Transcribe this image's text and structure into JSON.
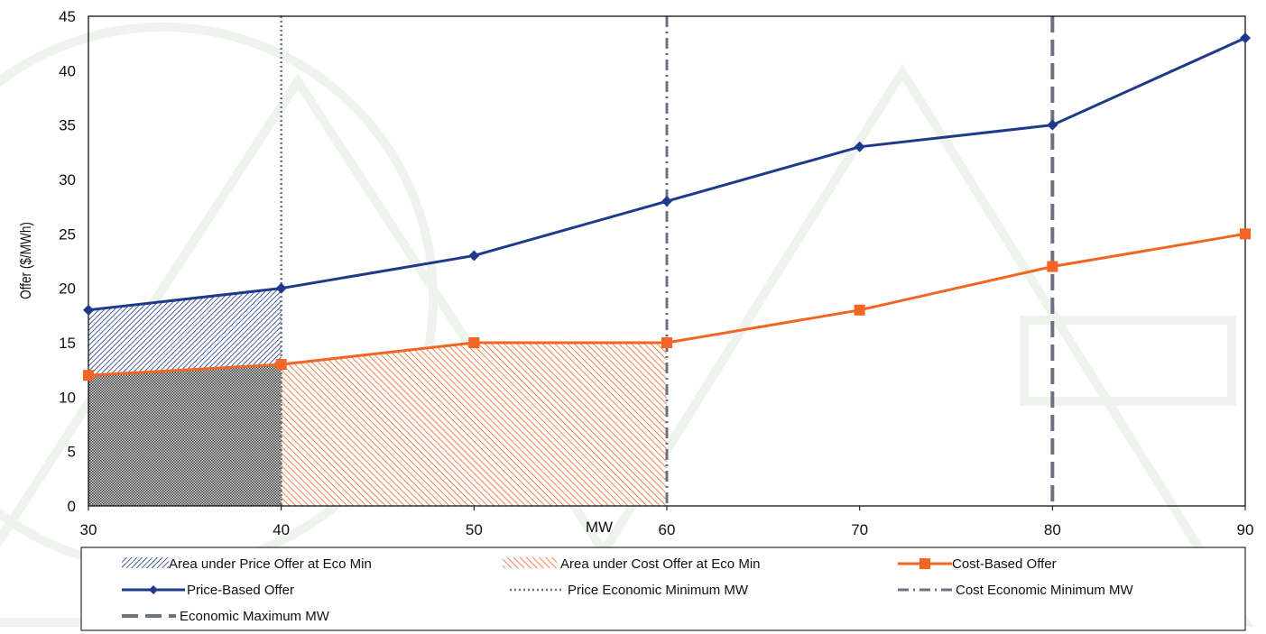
{
  "chart_data": {
    "type": "line",
    "title": "",
    "xlabel": "MW",
    "ylabel": "Offer ($/MWh)",
    "xlim": [
      30,
      90
    ],
    "ylim": [
      0,
      45
    ],
    "xticks": [
      30,
      40,
      50,
      60,
      70,
      80,
      90
    ],
    "yticks": [
      0,
      5,
      10,
      15,
      20,
      25,
      30,
      35,
      40,
      45
    ],
    "grid": false,
    "legend_position": "bottom",
    "series": [
      {
        "name": "Price-Based Offer",
        "type": "line",
        "marker": "diamond",
        "color": "#1f3a8a",
        "x": [
          30,
          40,
          50,
          60,
          70,
          80,
          90
        ],
        "y": [
          18,
          20,
          23,
          28,
          33,
          35,
          43
        ]
      },
      {
        "name": "Cost-Based Offer",
        "type": "line",
        "marker": "square",
        "color": "#f26522",
        "x": [
          30,
          40,
          50,
          60,
          70,
          80,
          90
        ],
        "y": [
          12,
          13,
          15,
          15,
          18,
          22,
          25
        ]
      }
    ],
    "areas": [
      {
        "name": "Area under Price Offer at Eco Min",
        "color": "#1f3a8a",
        "pattern": "dense-diagonal",
        "x_range": [
          30,
          40
        ]
      },
      {
        "name": "Area under Cost Offer at Eco Min",
        "color": "#f26522",
        "pattern": "diagonal",
        "x_range": [
          30,
          60
        ]
      }
    ],
    "vlines": [
      {
        "name": "Price Economic Minimum MW",
        "x": 40,
        "style": "dotted",
        "color": "#6b7280"
      },
      {
        "name": "Cost Economic Minimum MW",
        "x": 60,
        "style": "dash-dot",
        "color": "#6b7280"
      },
      {
        "name": "Economic Maximum MW",
        "x": 80,
        "style": "dashed",
        "color": "#6b7280"
      }
    ],
    "legend": [
      "Area under Price Offer at Eco Min",
      "Area under Cost Offer at Eco Min",
      "Cost-Based Offer",
      "Price-Based Offer",
      "Price Economic Minimum MW",
      "Cost Economic Minimum MW",
      "Economic Maximum MW"
    ]
  }
}
